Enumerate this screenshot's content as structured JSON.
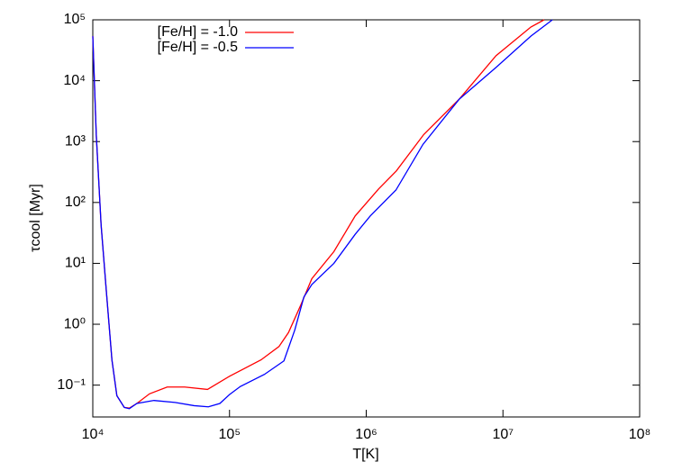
{
  "chart_data": {
    "type": "line",
    "x_label": "T[K]",
    "y_label": "τcool [Myr]",
    "xscale": "log",
    "yscale": "log",
    "xlim": [
      10000,
      100000000
    ],
    "ylim": [
      0.03,
      100000
    ],
    "xticks": [
      {
        "value": 10000,
        "label": "10⁴"
      },
      {
        "value": 100000,
        "label": "10⁵"
      },
      {
        "value": 1000000,
        "label": "10⁶"
      },
      {
        "value": 10000000,
        "label": "10⁷"
      },
      {
        "value": 100000000,
        "label": "10⁸"
      }
    ],
    "yticks": [
      {
        "value": 0.1,
        "label": "10⁻¹"
      },
      {
        "value": 1,
        "label": "10⁰"
      },
      {
        "value": 10,
        "label": "10¹"
      },
      {
        "value": 100,
        "label": "10²"
      },
      {
        "value": 1000,
        "label": "10³"
      },
      {
        "value": 10000,
        "label": "10⁴"
      },
      {
        "value": 100000,
        "label": "10⁵"
      }
    ],
    "legend": "top-left",
    "series": [
      {
        "name": "[Fe/H] = -1.0",
        "color": "#ff0000",
        "x": [
          10000,
          10600,
          11500,
          12500,
          13800,
          15000,
          17000,
          18500,
          21000,
          26000,
          35000,
          47000,
          69000,
          100000,
          170000,
          230000,
          270000,
          330000,
          400000,
          580000,
          830000,
          1230000,
          1660000,
          2630000,
          4800000,
          8900000,
          16000000,
          20000000
        ],
        "values": [
          54000,
          1300,
          43,
          4,
          0.26,
          0.067,
          0.043,
          0.042,
          0.05,
          0.072,
          0.093,
          0.093,
          0.085,
          0.14,
          0.26,
          0.43,
          0.73,
          2,
          5.6,
          15.6,
          60,
          166,
          330,
          1300,
          5000,
          25700,
          76000,
          100000
        ]
      },
      {
        "name": "[Fe/H] = -0.5",
        "color": "#0000ff",
        "x": [
          10000,
          10600,
          11500,
          12500,
          13800,
          15000,
          17000,
          18500,
          21000,
          28000,
          40000,
          55000,
          70000,
          85000,
          100000,
          120000,
          180000,
          250000,
          300000,
          350000,
          400000,
          580000,
          830000,
          1070000,
          1650000,
          2600000,
          4800000,
          8900000,
          16000000,
          23000000
        ],
        "values": [
          54000,
          1300,
          43,
          4,
          0.26,
          0.067,
          0.043,
          0.041,
          0.05,
          0.056,
          0.052,
          0.046,
          0.044,
          0.05,
          0.07,
          0.095,
          0.15,
          0.25,
          0.8,
          2.8,
          4.5,
          10,
          30,
          60,
          160,
          900,
          5000,
          16500,
          54000,
          100000
        ]
      }
    ]
  }
}
